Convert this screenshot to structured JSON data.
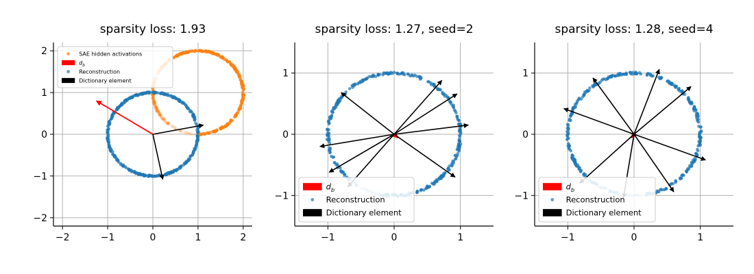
{
  "chart_data": [
    {
      "type": "scatter",
      "title": "sparsity loss: 1.93",
      "xlabel": "",
      "ylabel": "",
      "xlim": [
        -2.2,
        2.2
      ],
      "ylim": [
        -2.2,
        2.2
      ],
      "xticks": [
        -2,
        -1,
        0,
        1,
        2
      ],
      "yticks": [
        -2,
        -1,
        0,
        1,
        2
      ],
      "xtick_labels": [
        "−2",
        "−1",
        "0",
        "1",
        "2"
      ],
      "ytick_labels": [
        "−2",
        "−1",
        "0",
        "1",
        "2"
      ],
      "grid": true,
      "legend_position": "upper-left",
      "legend": [
        {
          "label": "SAE hidden activations",
          "kind": "point",
          "color": "#ff7f0e"
        },
        {
          "label": "d",
          "sub": "b",
          "kind": "patch",
          "color": "#ff0000"
        },
        {
          "label": "Reconstruction",
          "kind": "point",
          "color": "#1f77b4"
        },
        {
          "label": "Dictionary element",
          "kind": "patch",
          "color": "#000000"
        }
      ],
      "series": [
        {
          "name": "SAE hidden activations",
          "kind": "circle",
          "center": [
            1,
            1
          ],
          "radius": 1.0,
          "color": "#ff7f0e",
          "arcs": [
            [
              -90,
              150
            ]
          ],
          "fade": {
            "start": 150,
            "end": 270
          }
        },
        {
          "name": "Reconstruction",
          "kind": "circle",
          "center": [
            0,
            0
          ],
          "radius": 1.0,
          "color": "#1f77b4",
          "arcs": [
            [
              -10,
              360
            ]
          ],
          "fade": null
        }
      ],
      "arrows": [
        {
          "role": "d_b",
          "x": -1.25,
          "y": 0.8,
          "color": "#ff0000"
        },
        {
          "role": "dictionary",
          "x": 1.12,
          "y": 0.22,
          "color": "#000000"
        },
        {
          "role": "dictionary",
          "x": 0.22,
          "y": -1.08,
          "color": "#000000"
        }
      ]
    },
    {
      "type": "scatter",
      "title": "sparsity loss: 1.27, seed=2",
      "xlabel": "",
      "ylabel": "",
      "xlim": [
        -1.5,
        1.5
      ],
      "ylim": [
        -1.5,
        1.5
      ],
      "xticks": [
        -1,
        0,
        1
      ],
      "yticks": [
        -1,
        0,
        1
      ],
      "xtick_labels": [
        "−1",
        "0",
        "1"
      ],
      "ytick_labels": [
        "−1",
        "0",
        "1"
      ],
      "grid": true,
      "legend_position": "lower-left",
      "legend": [
        {
          "label": "d",
          "sub": "b",
          "kind": "patch",
          "color": "#ff0000"
        },
        {
          "label": "Reconstruction",
          "kind": "point",
          "color": "#1f77b4"
        },
        {
          "label": "Dictionary element",
          "kind": "patch",
          "color": "#000000"
        }
      ],
      "series": [
        {
          "name": "Reconstruction",
          "kind": "circle",
          "center": [
            0,
            0
          ],
          "radius": 1.0,
          "color": "#1f77b4",
          "arcs": [
            [
              -100,
              220
            ]
          ],
          "fade": {
            "start": 220,
            "end": 260
          }
        }
      ],
      "arrows": [
        {
          "role": "d_b",
          "x": 0.06,
          "y": -0.06,
          "color": "#ff0000"
        },
        {
          "role": "dictionary",
          "x": -0.8,
          "y": 0.68,
          "color": "#000000"
        },
        {
          "role": "dictionary",
          "x": 0.72,
          "y": 0.88,
          "color": "#000000"
        },
        {
          "role": "dictionary",
          "x": 0.95,
          "y": 0.66,
          "color": "#000000"
        },
        {
          "role": "dictionary",
          "x": 1.12,
          "y": 0.15,
          "color": "#000000"
        },
        {
          "role": "dictionary",
          "x": -1.12,
          "y": -0.2,
          "color": "#000000"
        },
        {
          "role": "dictionary",
          "x": -0.98,
          "y": -0.62,
          "color": "#000000"
        },
        {
          "role": "dictionary",
          "x": -0.7,
          "y": -0.86,
          "color": "#000000"
        },
        {
          "role": "dictionary",
          "x": 0.92,
          "y": -0.7,
          "color": "#000000"
        }
      ]
    },
    {
      "type": "scatter",
      "title": "sparsity loss: 1.28, seed=4",
      "xlabel": "",
      "ylabel": "",
      "xlim": [
        -1.5,
        1.5
      ],
      "ylim": [
        -1.5,
        1.5
      ],
      "xticks": [
        -1,
        0,
        1
      ],
      "yticks": [
        -1,
        0,
        1
      ],
      "xtick_labels": [
        "−1",
        "0",
        "1"
      ],
      "ytick_labels": [
        "−1",
        "0",
        "1"
      ],
      "grid": true,
      "legend_position": "lower-left",
      "legend": [
        {
          "label": "d",
          "sub": "b",
          "kind": "patch",
          "color": "#ff0000"
        },
        {
          "label": "Reconstruction",
          "kind": "point",
          "color": "#1f77b4"
        },
        {
          "label": "Dictionary element",
          "kind": "patch",
          "color": "#000000"
        }
      ],
      "series": [
        {
          "name": "Reconstruction",
          "kind": "circle",
          "center": [
            0,
            0
          ],
          "radius": 1.0,
          "color": "#1f77b4",
          "arcs": [
            [
              -80,
              225
            ]
          ],
          "fade": {
            "start": 225,
            "end": 280
          }
        }
      ],
      "arrows": [
        {
          "role": "d_b",
          "x": -0.04,
          "y": -0.06,
          "color": "#ff0000"
        },
        {
          "role": "dictionary",
          "x": -0.62,
          "y": 0.92,
          "color": "#000000"
        },
        {
          "role": "dictionary",
          "x": 0.38,
          "y": 1.06,
          "color": "#000000"
        },
        {
          "role": "dictionary",
          "x": 0.86,
          "y": 0.78,
          "color": "#000000"
        },
        {
          "role": "dictionary",
          "x": -1.06,
          "y": 0.42,
          "color": "#000000"
        },
        {
          "role": "dictionary",
          "x": 1.08,
          "y": -0.42,
          "color": "#000000"
        },
        {
          "role": "dictionary",
          "x": 0.6,
          "y": -0.94,
          "color": "#000000"
        },
        {
          "role": "dictionary",
          "x": -0.82,
          "y": -0.8,
          "color": "#000000"
        },
        {
          "role": "dictionary",
          "x": -0.16,
          "y": -1.04,
          "color": "#000000"
        }
      ]
    }
  ]
}
